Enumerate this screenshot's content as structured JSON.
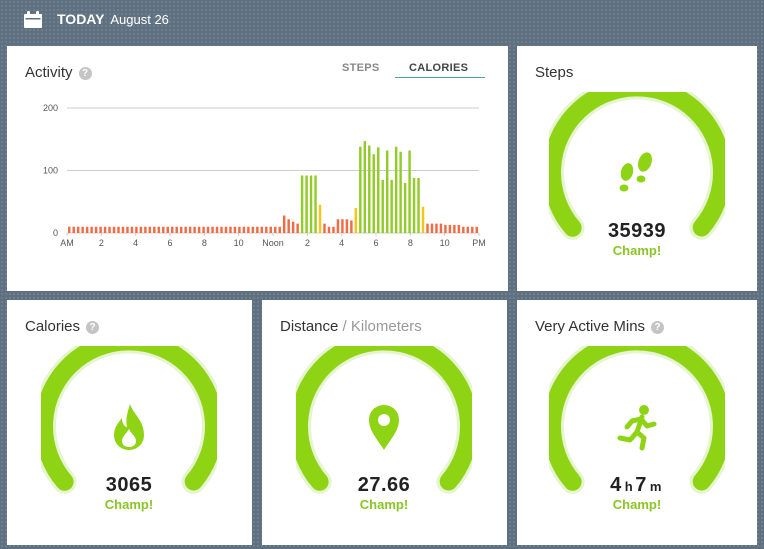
{
  "header": {
    "today_label": "TODAY",
    "date": "August 26"
  },
  "colors": {
    "accent_green": "#8fd414",
    "bar_orange": "#ef6d46",
    "bar_yellow": "#f5c518",
    "bar_green": "#93cc2a",
    "tab_underline": "#4aa3a6"
  },
  "activity": {
    "title": "Activity",
    "help_icon": "question-icon",
    "tabs": {
      "steps": "STEPS",
      "calories": "CALORIES"
    },
    "selected_tab": "CALORIES"
  },
  "chart_data": {
    "type": "bar",
    "title": "Activity",
    "yticks": [
      "0",
      "100",
      "200"
    ],
    "ylim": [
      0,
      200
    ],
    "xticks": [
      "AM",
      "2",
      "4",
      "6",
      "8",
      "10",
      "Noon",
      "2",
      "4",
      "6",
      "8",
      "10",
      "PM"
    ],
    "grid": true,
    "bars": [
      {
        "v": 10,
        "z": "sedentary"
      },
      {
        "v": 10,
        "z": "sedentary"
      },
      {
        "v": 10,
        "z": "sedentary"
      },
      {
        "v": 10,
        "z": "sedentary"
      },
      {
        "v": 10,
        "z": "sedentary"
      },
      {
        "v": 10,
        "z": "sedentary"
      },
      {
        "v": 10,
        "z": "sedentary"
      },
      {
        "v": 10,
        "z": "sedentary"
      },
      {
        "v": 10,
        "z": "sedentary"
      },
      {
        "v": 10,
        "z": "sedentary"
      },
      {
        "v": 10,
        "z": "sedentary"
      },
      {
        "v": 10,
        "z": "sedentary"
      },
      {
        "v": 10,
        "z": "sedentary"
      },
      {
        "v": 10,
        "z": "sedentary"
      },
      {
        "v": 10,
        "z": "sedentary"
      },
      {
        "v": 10,
        "z": "sedentary"
      },
      {
        "v": 10,
        "z": "sedentary"
      },
      {
        "v": 10,
        "z": "sedentary"
      },
      {
        "v": 10,
        "z": "sedentary"
      },
      {
        "v": 10,
        "z": "sedentary"
      },
      {
        "v": 10,
        "z": "sedentary"
      },
      {
        "v": 10,
        "z": "sedentary"
      },
      {
        "v": 10,
        "z": "sedentary"
      },
      {
        "v": 10,
        "z": "sedentary"
      },
      {
        "v": 10,
        "z": "sedentary"
      },
      {
        "v": 10,
        "z": "sedentary"
      },
      {
        "v": 10,
        "z": "sedentary"
      },
      {
        "v": 10,
        "z": "sedentary"
      },
      {
        "v": 10,
        "z": "sedentary"
      },
      {
        "v": 10,
        "z": "sedentary"
      },
      {
        "v": 10,
        "z": "sedentary"
      },
      {
        "v": 10,
        "z": "sedentary"
      },
      {
        "v": 10,
        "z": "sedentary"
      },
      {
        "v": 10,
        "z": "sedentary"
      },
      {
        "v": 10,
        "z": "sedentary"
      },
      {
        "v": 10,
        "z": "sedentary"
      },
      {
        "v": 10,
        "z": "sedentary"
      },
      {
        "v": 10,
        "z": "sedentary"
      },
      {
        "v": 10,
        "z": "sedentary"
      },
      {
        "v": 10,
        "z": "sedentary"
      },
      {
        "v": 10,
        "z": "sedentary"
      },
      {
        "v": 10,
        "z": "sedentary"
      },
      {
        "v": 10,
        "z": "sedentary"
      },
      {
        "v": 10,
        "z": "sedentary"
      },
      {
        "v": 10,
        "z": "sedentary"
      },
      {
        "v": 10,
        "z": "sedentary"
      },
      {
        "v": 10,
        "z": "sedentary"
      },
      {
        "v": 10,
        "z": "sedentary"
      },
      {
        "v": 28,
        "z": "sedentary"
      },
      {
        "v": 22,
        "z": "sedentary"
      },
      {
        "v": 18,
        "z": "sedentary"
      },
      {
        "v": 15,
        "z": "sedentary"
      },
      {
        "v": 92,
        "z": "active"
      },
      {
        "v": 92,
        "z": "active"
      },
      {
        "v": 92,
        "z": "active"
      },
      {
        "v": 92,
        "z": "active"
      },
      {
        "v": 45,
        "z": "light"
      },
      {
        "v": 15,
        "z": "sedentary"
      },
      {
        "v": 10,
        "z": "sedentary"
      },
      {
        "v": 10,
        "z": "sedentary"
      },
      {
        "v": 22,
        "z": "sedentary"
      },
      {
        "v": 22,
        "z": "sedentary"
      },
      {
        "v": 22,
        "z": "sedentary"
      },
      {
        "v": 20,
        "z": "sedentary"
      },
      {
        "v": 40,
        "z": "light"
      },
      {
        "v": 138,
        "z": "active"
      },
      {
        "v": 147,
        "z": "active"
      },
      {
        "v": 140,
        "z": "active"
      },
      {
        "v": 126,
        "z": "active"
      },
      {
        "v": 137,
        "z": "active"
      },
      {
        "v": 85,
        "z": "active"
      },
      {
        "v": 132,
        "z": "active"
      },
      {
        "v": 85,
        "z": "active"
      },
      {
        "v": 138,
        "z": "active"
      },
      {
        "v": 130,
        "z": "active"
      },
      {
        "v": 80,
        "z": "active"
      },
      {
        "v": 132,
        "z": "active"
      },
      {
        "v": 88,
        "z": "active"
      },
      {
        "v": 88,
        "z": "active"
      },
      {
        "v": 42,
        "z": "light"
      },
      {
        "v": 15,
        "z": "sedentary"
      },
      {
        "v": 15,
        "z": "sedentary"
      },
      {
        "v": 15,
        "z": "sedentary"
      },
      {
        "v": 15,
        "z": "sedentary"
      },
      {
        "v": 13,
        "z": "sedentary"
      },
      {
        "v": 13,
        "z": "sedentary"
      },
      {
        "v": 13,
        "z": "sedentary"
      },
      {
        "v": 13,
        "z": "sedentary"
      },
      {
        "v": 10,
        "z": "sedentary"
      },
      {
        "v": 10,
        "z": "sedentary"
      },
      {
        "v": 10,
        "z": "sedentary"
      },
      {
        "v": 10,
        "z": "sedentary"
      }
    ]
  },
  "steps": {
    "title": "Steps",
    "value": "35939",
    "status": "Champ!",
    "icon": "footprints-icon",
    "progress": 1.0
  },
  "calories": {
    "title": "Calories",
    "value": "3065",
    "status": "Champ!",
    "icon": "flame-icon",
    "help_icon": "question-icon",
    "progress": 1.0
  },
  "distance": {
    "title": "Distance",
    "subtitle": "/ Kilometers",
    "value": "27.66",
    "status": "Champ!",
    "icon": "location-pin-icon",
    "progress": 1.0
  },
  "active_mins": {
    "title": "Very Active Mins",
    "hours": "4",
    "hours_unit": "h",
    "minutes": "7",
    "minutes_unit": "m",
    "status": "Champ!",
    "icon": "running-person-icon",
    "help_icon": "question-icon",
    "progress": 1.0
  }
}
